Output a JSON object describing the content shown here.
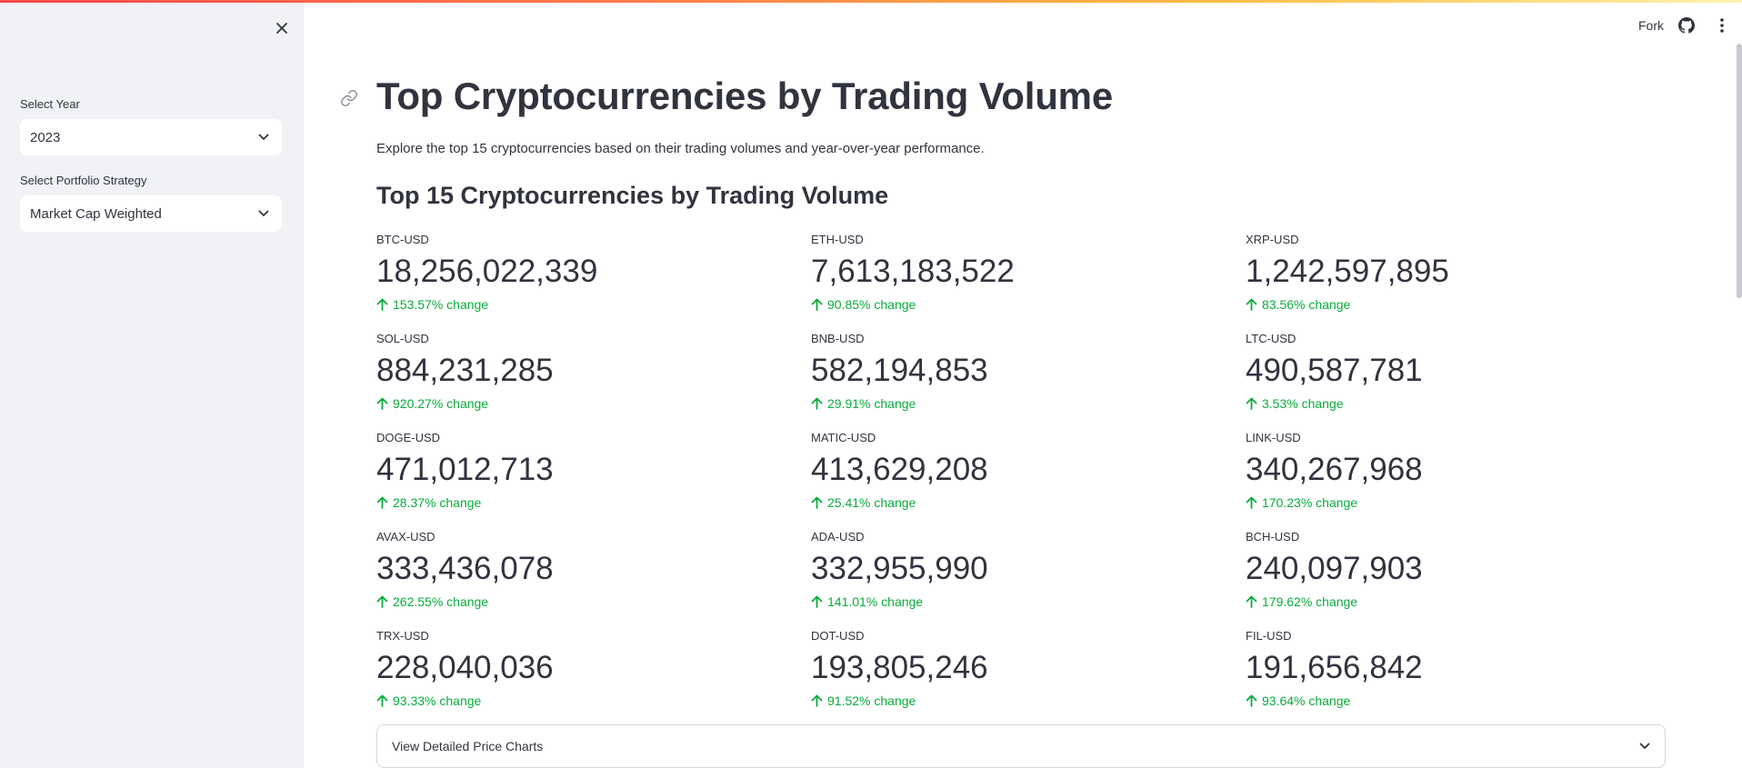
{
  "sidebar": {
    "year_label": "Select Year",
    "year_value": "2023",
    "strategy_label": "Select Portfolio Strategy",
    "strategy_value": "Market Cap Weighted"
  },
  "header": {
    "fork_label": "Fork"
  },
  "main": {
    "title": "Top Cryptocurrencies by Trading Volume",
    "subtitle": "Explore the top 15 cryptocurrencies based on their trading volumes and year-over-year performance.",
    "section_title": "Top 15 Cryptocurrencies by Trading Volume",
    "metrics": [
      {
        "label": "BTC-USD",
        "value": "18,256,022,339",
        "delta": "153.57% change"
      },
      {
        "label": "ETH-USD",
        "value": "7,613,183,522",
        "delta": "90.85% change"
      },
      {
        "label": "XRP-USD",
        "value": "1,242,597,895",
        "delta": "83.56% change"
      },
      {
        "label": "SOL-USD",
        "value": "884,231,285",
        "delta": "920.27% change"
      },
      {
        "label": "BNB-USD",
        "value": "582,194,853",
        "delta": "29.91% change"
      },
      {
        "label": "LTC-USD",
        "value": "490,587,781",
        "delta": "3.53% change"
      },
      {
        "label": "DOGE-USD",
        "value": "471,012,713",
        "delta": "28.37% change"
      },
      {
        "label": "MATIC-USD",
        "value": "413,629,208",
        "delta": "25.41% change"
      },
      {
        "label": "LINK-USD",
        "value": "340,267,968",
        "delta": "170.23% change"
      },
      {
        "label": "AVAX-USD",
        "value": "333,436,078",
        "delta": "262.55% change"
      },
      {
        "label": "ADA-USD",
        "value": "332,955,990",
        "delta": "141.01% change"
      },
      {
        "label": "BCH-USD",
        "value": "240,097,903",
        "delta": "179.62% change"
      },
      {
        "label": "TRX-USD",
        "value": "228,040,036",
        "delta": "93.33% change"
      },
      {
        "label": "DOT-USD",
        "value": "193,805,246",
        "delta": "91.52% change"
      },
      {
        "label": "FIL-USD",
        "value": "191,656,842",
        "delta": "93.64% change"
      }
    ],
    "expander_label": "View Detailed Price Charts"
  },
  "colors": {
    "positive_delta": "#09ab3b",
    "sidebar_bg": "#f0f2f6",
    "text": "#31333f"
  },
  "icons": {
    "close": "close-icon",
    "chevron": "chevron-down-icon",
    "github": "github-icon",
    "menu": "kebab-menu-icon",
    "link": "link-icon",
    "delta_up": "arrow-up-icon"
  }
}
